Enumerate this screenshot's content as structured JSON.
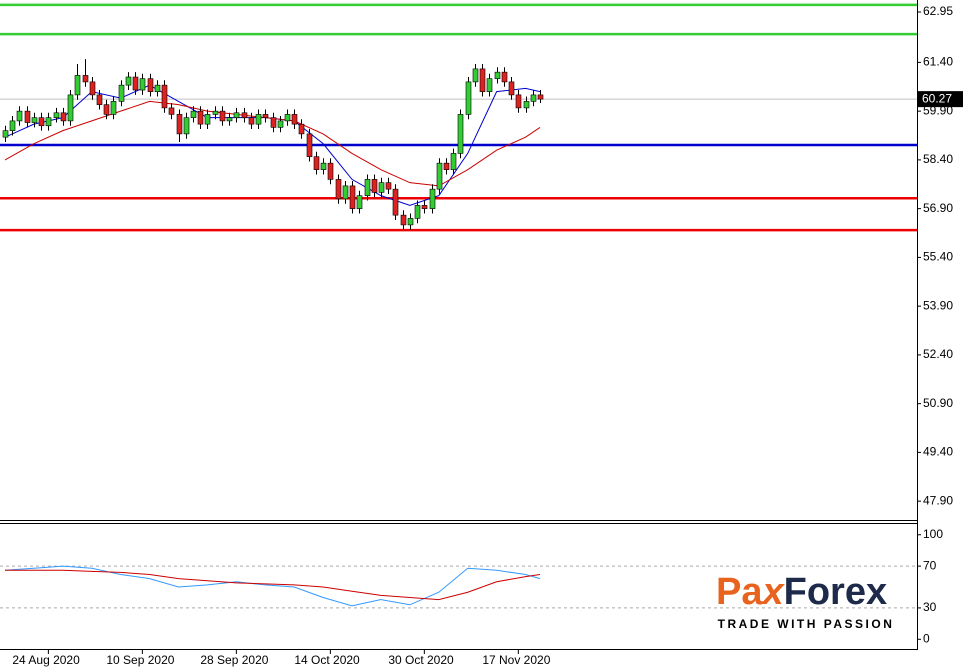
{
  "chart_data": {
    "type": "candlestick",
    "categories": [
      null,
      null,
      null,
      null,
      null,
      null,
      "24 Aug 2020",
      null,
      null,
      null,
      null,
      null,
      null,
      null,
      null,
      null,
      null,
      null,
      null,
      "10 Sep 2020",
      null,
      null,
      null,
      null,
      null,
      null,
      null,
      null,
      null,
      null,
      null,
      null,
      "28 Sep 2020",
      null,
      null,
      null,
      null,
      null,
      null,
      null,
      null,
      null,
      null,
      null,
      null,
      "14 Oct 2020",
      null,
      null,
      null,
      null,
      null,
      null,
      null,
      null,
      null,
      null,
      null,
      null,
      "30 Oct 2020",
      null,
      null,
      null,
      null,
      null,
      null,
      null,
      null,
      null,
      null,
      null,
      null,
      "17 Nov 2020",
      null,
      null,
      null
    ],
    "ohlc": [
      [
        59.1,
        59.45,
        58.95,
        59.3
      ],
      [
        59.3,
        59.75,
        59.15,
        59.6
      ],
      [
        59.6,
        60.05,
        59.45,
        59.9
      ],
      [
        59.9,
        60.05,
        59.4,
        59.55
      ],
      [
        59.55,
        59.85,
        59.4,
        59.7
      ],
      [
        59.7,
        59.85,
        59.3,
        59.45
      ],
      [
        59.45,
        59.85,
        59.3,
        59.7
      ],
      [
        59.7,
        60.0,
        59.55,
        59.85
      ],
      [
        59.85,
        60.0,
        59.45,
        59.6
      ],
      [
        59.6,
        60.55,
        59.45,
        60.4
      ],
      [
        60.4,
        61.35,
        60.25,
        61.0
      ],
      [
        61.0,
        61.5,
        60.65,
        60.8
      ],
      [
        60.8,
        60.95,
        60.25,
        60.4
      ],
      [
        60.4,
        60.55,
        59.95,
        60.1
      ],
      [
        60.1,
        60.25,
        59.65,
        59.8
      ],
      [
        59.8,
        60.35,
        59.65,
        60.2
      ],
      [
        60.2,
        60.85,
        60.05,
        60.7
      ],
      [
        60.7,
        61.1,
        60.55,
        60.95
      ],
      [
        60.95,
        61.1,
        60.4,
        60.55
      ],
      [
        60.55,
        61.05,
        60.4,
        60.9
      ],
      [
        60.9,
        61.05,
        60.35,
        60.5
      ],
      [
        60.5,
        60.85,
        60.35,
        60.7
      ],
      [
        60.7,
        60.85,
        59.85,
        60.0
      ],
      [
        60.0,
        60.15,
        59.65,
        59.8
      ],
      [
        59.8,
        59.95,
        58.95,
        59.2
      ],
      [
        59.2,
        59.85,
        59.05,
        59.7
      ],
      [
        59.7,
        60.05,
        59.55,
        59.9
      ],
      [
        59.9,
        60.05,
        59.35,
        59.5
      ],
      [
        59.5,
        59.95,
        59.35,
        59.8
      ],
      [
        59.8,
        60.05,
        59.65,
        59.9
      ],
      [
        59.9,
        60.05,
        59.45,
        59.6
      ],
      [
        59.6,
        59.85,
        59.45,
        59.7
      ],
      [
        59.7,
        60.0,
        59.55,
        59.85
      ],
      [
        59.85,
        60.0,
        59.55,
        59.7
      ],
      [
        59.7,
        59.85,
        59.35,
        59.5
      ],
      [
        59.5,
        59.95,
        59.35,
        59.8
      ],
      [
        59.8,
        59.95,
        59.55,
        59.7
      ],
      [
        59.7,
        59.85,
        59.25,
        59.4
      ],
      [
        59.4,
        59.75,
        59.25,
        59.6
      ],
      [
        59.6,
        59.95,
        59.45,
        59.8
      ],
      [
        59.8,
        59.95,
        59.35,
        59.5
      ],
      [
        59.5,
        59.65,
        59.05,
        59.2
      ],
      [
        59.2,
        59.35,
        58.35,
        58.5
      ],
      [
        58.5,
        58.65,
        57.95,
        58.1
      ],
      [
        58.1,
        58.45,
        57.95,
        58.3
      ],
      [
        58.3,
        58.45,
        57.65,
        57.8
      ],
      [
        57.8,
        57.95,
        57.05,
        57.2
      ],
      [
        57.2,
        57.75,
        57.05,
        57.6
      ],
      [
        57.6,
        57.75,
        56.75,
        56.9
      ],
      [
        56.9,
        57.45,
        56.75,
        57.3
      ],
      [
        57.3,
        57.95,
        57.15,
        57.8
      ],
      [
        57.8,
        57.95,
        57.25,
        57.4
      ],
      [
        57.4,
        57.85,
        57.25,
        57.7
      ],
      [
        57.7,
        57.85,
        57.35,
        57.5
      ],
      [
        57.5,
        57.65,
        56.55,
        56.7
      ],
      [
        56.7,
        56.85,
        56.25,
        56.4
      ],
      [
        56.4,
        56.75,
        56.25,
        56.6
      ],
      [
        56.6,
        57.15,
        56.45,
        57.0
      ],
      [
        57.0,
        57.15,
        56.75,
        56.9
      ],
      [
        56.9,
        57.65,
        56.75,
        57.5
      ],
      [
        57.5,
        58.45,
        57.35,
        58.3
      ],
      [
        58.3,
        58.45,
        57.95,
        58.1
      ],
      [
        58.1,
        58.75,
        57.95,
        58.6
      ],
      [
        58.6,
        59.95,
        58.45,
        59.8
      ],
      [
        59.8,
        60.95,
        59.65,
        60.8
      ],
      [
        60.8,
        61.35,
        60.65,
        61.2
      ],
      [
        61.2,
        61.35,
        60.35,
        60.5
      ],
      [
        60.5,
        61.05,
        60.35,
        60.9
      ],
      [
        60.9,
        61.25,
        60.75,
        61.1
      ],
      [
        61.1,
        61.25,
        60.65,
        60.8
      ],
      [
        60.8,
        60.95,
        60.25,
        60.4
      ],
      [
        60.4,
        60.55,
        59.85,
        60.0
      ],
      [
        60.0,
        60.35,
        59.85,
        60.2
      ],
      [
        60.2,
        60.55,
        60.05,
        60.4
      ],
      [
        60.4,
        60.55,
        60.15,
        60.27
      ]
    ],
    "up_color": "#33cc33",
    "down_color": "#dd2222",
    "ylim": [
      47.32,
      63.32
    ],
    "yticks": [
      62.95,
      {
        "value": 61.4,
        "label": "61.40"
      },
      {
        "value": 59.9,
        "label": "59.90"
      },
      {
        "value": 58.4,
        "label": "58.40"
      },
      {
        "value": 56.9,
        "label": "56.90"
      },
      {
        "value": 55.4,
        "label": "55.40"
      },
      {
        "value": 53.9,
        "label": "53.90"
      },
      {
        "value": 52.4,
        "label": "52.40"
      },
      {
        "value": 50.9,
        "label": "50.90"
      },
      {
        "value": 49.4,
        "label": "49.40"
      },
      {
        "value": 47.9,
        "label": "47.90"
      }
    ],
    "current_price": 60.27,
    "levels": [
      {
        "value": 63.17,
        "color": "#33cc33"
      },
      {
        "value": 62.27,
        "color": "#33cc33"
      },
      {
        "value": 58.86,
        "color": "#0000cc"
      },
      {
        "value": 57.22,
        "color": "#ee0000"
      },
      {
        "value": 56.24,
        "color": "#ee0000"
      }
    ],
    "lines": [
      {
        "color": "#0000cc",
        "x": [
          0,
          4,
          8,
          12,
          16,
          20,
          24,
          28,
          32,
          36,
          40,
          44,
          48,
          52,
          56,
          60,
          64,
          68,
          72,
          74
        ],
        "values": [
          59.1,
          59.5,
          59.7,
          60.5,
          60.3,
          60.7,
          60.2,
          59.7,
          59.7,
          59.7,
          59.6,
          58.9,
          57.8,
          57.3,
          57.0,
          57.3,
          58.6,
          60.5,
          60.6,
          60.5
        ]
      },
      {
        "color": "#cc0000",
        "x": [
          0,
          4,
          8,
          12,
          16,
          20,
          24,
          28,
          32,
          36,
          40,
          44,
          48,
          52,
          56,
          60,
          64,
          68,
          72,
          74
        ],
        "values": [
          58.4,
          58.9,
          59.3,
          59.6,
          59.9,
          60.2,
          60.1,
          59.9,
          59.8,
          59.7,
          59.6,
          59.2,
          58.6,
          58.1,
          57.7,
          57.6,
          58.1,
          58.7,
          59.1,
          59.4
        ]
      }
    ],
    "indicator": {
      "ylim": [
        -9.3,
        110.3
      ],
      "yticks": [
        100,
        70,
        30,
        0
      ],
      "grid_values": [
        70,
        30
      ],
      "series": [
        {
          "color": "#3399ff",
          "x": [
            0,
            4,
            8,
            12,
            16,
            20,
            24,
            28,
            32,
            36,
            40,
            44,
            48,
            52,
            56,
            60,
            64,
            68,
            72,
            74
          ],
          "values": [
            66,
            68,
            70,
            68,
            62,
            58,
            50,
            52,
            55,
            52,
            50,
            40,
            32,
            38,
            33,
            45,
            68,
            66,
            62,
            58
          ]
        },
        {
          "color": "#cc0000",
          "x": [
            0,
            4,
            8,
            12,
            16,
            20,
            24,
            28,
            32,
            36,
            40,
            44,
            48,
            52,
            56,
            60,
            64,
            68,
            72,
            74
          ],
          "values": [
            66,
            66,
            66,
            65,
            64,
            62,
            58,
            56,
            54,
            53,
            52,
            50,
            46,
            42,
            40,
            38,
            45,
            55,
            60,
            62
          ]
        }
      ]
    },
    "logo": {
      "parts": [
        "Pa",
        "x",
        "Forex"
      ],
      "tagline": "TRADE WITH PASSION"
    }
  }
}
